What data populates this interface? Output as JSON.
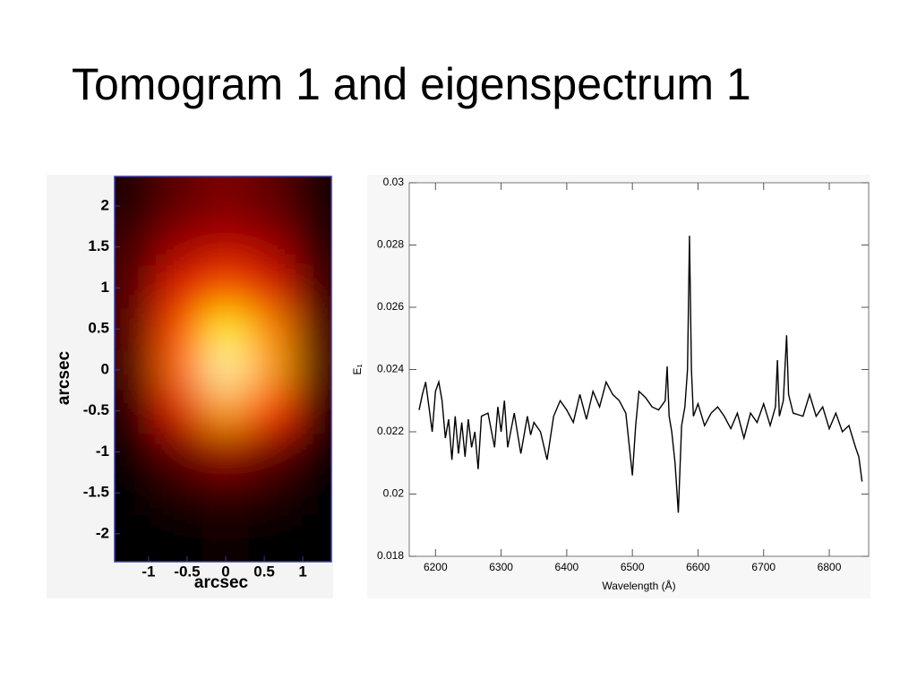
{
  "title": "Tomogram 1 and eigenspectrum 1",
  "chart_data": [
    {
      "type": "heatmap",
      "colormap": "hot",
      "xlabel": "arcsec",
      "ylabel": "arcsec",
      "x": [
        -1.2,
        -0.6,
        0,
        0.6,
        1.2
      ],
      "y": [
        2.0,
        1.5,
        1.0,
        0.5,
        0.0,
        -0.5,
        -1.0,
        -1.5,
        -2.0
      ],
      "z": [
        [
          0.05,
          0.15,
          0.2,
          0.15,
          0.03
        ],
        [
          0.1,
          0.25,
          0.3,
          0.25,
          0.05
        ],
        [
          0.12,
          0.35,
          0.45,
          0.35,
          0.08
        ],
        [
          0.12,
          0.45,
          0.75,
          0.55,
          0.1
        ],
        [
          0.1,
          0.5,
          0.95,
          0.6,
          0.1
        ],
        [
          0.05,
          0.35,
          0.6,
          0.4,
          0.05
        ],
        [
          0.02,
          0.15,
          0.25,
          0.15,
          0.02
        ],
        [
          0,
          0.05,
          0.08,
          0.05,
          0
        ],
        [
          0,
          0,
          0.02,
          0,
          0
        ]
      ],
      "xlim": [
        -1.44,
        1.37
      ],
      "ylim": [
        -2.34,
        2.36
      ],
      "xticks": [
        -1,
        -0.5,
        0,
        0.5,
        1
      ],
      "yticks": [
        2,
        1.5,
        1,
        0.5,
        0,
        -0.5,
        -1,
        -1.5,
        -2
      ]
    },
    {
      "type": "line",
      "xlabel": "Wavelength (Å)",
      "ylabel": "E₁",
      "x": [
        6175,
        6180,
        6185,
        6190,
        6195,
        6200,
        6205,
        6210,
        6215,
        6220,
        6225,
        6230,
        6235,
        6240,
        6245,
        6250,
        6255,
        6260,
        6265,
        6270,
        6280,
        6290,
        6295,
        6300,
        6305,
        6310,
        6320,
        6330,
        6340,
        6345,
        6350,
        6360,
        6370,
        6380,
        6390,
        6400,
        6410,
        6420,
        6430,
        6440,
        6450,
        6460,
        6470,
        6480,
        6490,
        6500,
        6505,
        6510,
        6520,
        6530,
        6540,
        6550,
        6553,
        6556,
        6560,
        6565,
        6570,
        6575,
        6580,
        6584,
        6587,
        6590,
        6593,
        6600,
        6610,
        6620,
        6630,
        6640,
        6650,
        6660,
        6670,
        6680,
        6690,
        6700,
        6710,
        6718,
        6721,
        6724,
        6730,
        6735,
        6738,
        6745,
        6760,
        6770,
        6780,
        6790,
        6800,
        6810,
        6820,
        6830,
        6840,
        6845,
        6850
      ],
      "series": [
        {
          "color": "#000000",
          "values": [
            0.0227,
            0.0232,
            0.0236,
            0.0228,
            0.022,
            0.0233,
            0.0236,
            0.023,
            0.0218,
            0.0224,
            0.0211,
            0.0225,
            0.0213,
            0.0223,
            0.0212,
            0.0224,
            0.0215,
            0.022,
            0.0208,
            0.0225,
            0.0226,
            0.0215,
            0.0228,
            0.022,
            0.023,
            0.0215,
            0.0226,
            0.0213,
            0.0225,
            0.0219,
            0.0223,
            0.022,
            0.0211,
            0.0225,
            0.023,
            0.0227,
            0.0223,
            0.0232,
            0.0224,
            0.0233,
            0.0228,
            0.0236,
            0.0232,
            0.023,
            0.0226,
            0.0206,
            0.0222,
            0.0233,
            0.0231,
            0.0228,
            0.0227,
            0.023,
            0.0241,
            0.0225,
            0.022,
            0.021,
            0.0194,
            0.0222,
            0.0228,
            0.024,
            0.0283,
            0.024,
            0.0225,
            0.0229,
            0.0222,
            0.0226,
            0.0228,
            0.0225,
            0.0221,
            0.0226,
            0.0218,
            0.0226,
            0.0223,
            0.0229,
            0.0222,
            0.0228,
            0.0243,
            0.0225,
            0.023,
            0.0251,
            0.0232,
            0.0226,
            0.0225,
            0.0232,
            0.0225,
            0.0228,
            0.0221,
            0.0226,
            0.022,
            0.0222,
            0.0215,
            0.0212,
            0.0204
          ]
        }
      ],
      "xlim": [
        6160,
        6860
      ],
      "ylim": [
        0.018,
        0.03
      ],
      "xticks": [
        6200,
        6300,
        6400,
        6500,
        6600,
        6700,
        6800
      ],
      "yticks": [
        0.018,
        0.02,
        0.022,
        0.024,
        0.026,
        0.028,
        0.03
      ]
    }
  ]
}
